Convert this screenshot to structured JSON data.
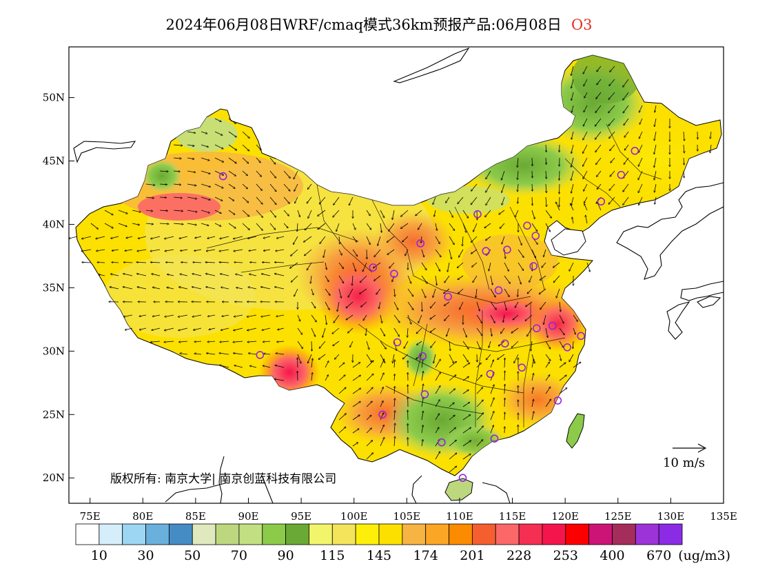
{
  "title": {
    "text": "2024年06月08日WRF/cmaq模式36km预报产品:06月08日",
    "pollutant": "O3",
    "pollutant_color": "#e03020"
  },
  "map": {
    "lon_range": [
      73,
      135
    ],
    "lat_range": [
      18,
      54
    ],
    "lon_ticks": [
      {
        "value": 75,
        "label": "75E"
      },
      {
        "value": 80,
        "label": "80E"
      },
      {
        "value": 85,
        "label": "85E"
      },
      {
        "value": 90,
        "label": "90E"
      },
      {
        "value": 95,
        "label": "95E"
      },
      {
        "value": 100,
        "label": "100E"
      },
      {
        "value": 105,
        "label": "105E"
      },
      {
        "value": 110,
        "label": "110E"
      },
      {
        "value": 115,
        "label": "115E"
      },
      {
        "value": 120,
        "label": "120E"
      },
      {
        "value": 125,
        "label": "125E"
      },
      {
        "value": 130,
        "label": "130E"
      },
      {
        "value": 135,
        "label": "135E"
      }
    ],
    "lat_ticks": [
      {
        "value": 20,
        "label": "20N"
      },
      {
        "value": 25,
        "label": "25N"
      },
      {
        "value": 30,
        "label": "30N"
      },
      {
        "value": 35,
        "label": "35N"
      },
      {
        "value": 40,
        "label": "40N"
      },
      {
        "value": 45,
        "label": "45N"
      },
      {
        "value": 50,
        "label": "50N"
      }
    ],
    "wind_reference": {
      "label": "10 m/s"
    },
    "cities": [
      {
        "lon": 87.6,
        "lat": 43.8
      },
      {
        "lon": 91.1,
        "lat": 29.7
      },
      {
        "lon": 101.8,
        "lat": 36.6
      },
      {
        "lon": 103.8,
        "lat": 36.1
      },
      {
        "lon": 106.3,
        "lat": 38.5
      },
      {
        "lon": 111.7,
        "lat": 40.8
      },
      {
        "lon": 116.4,
        "lat": 39.9
      },
      {
        "lon": 117.2,
        "lat": 39.1
      },
      {
        "lon": 114.5,
        "lat": 38.0
      },
      {
        "lon": 112.5,
        "lat": 37.9
      },
      {
        "lon": 117.0,
        "lat": 36.7
      },
      {
        "lon": 113.7,
        "lat": 34.8
      },
      {
        "lon": 108.9,
        "lat": 34.3
      },
      {
        "lon": 118.8,
        "lat": 32.0
      },
      {
        "lon": 117.3,
        "lat": 31.8
      },
      {
        "lon": 121.5,
        "lat": 31.2
      },
      {
        "lon": 120.2,
        "lat": 30.3
      },
      {
        "lon": 114.3,
        "lat": 30.6
      },
      {
        "lon": 104.1,
        "lat": 30.7
      },
      {
        "lon": 106.5,
        "lat": 29.6
      },
      {
        "lon": 112.9,
        "lat": 28.2
      },
      {
        "lon": 115.9,
        "lat": 28.7
      },
      {
        "lon": 106.7,
        "lat": 26.6
      },
      {
        "lon": 119.3,
        "lat": 26.1
      },
      {
        "lon": 102.7,
        "lat": 25.0
      },
      {
        "lon": 113.3,
        "lat": 23.1
      },
      {
        "lon": 108.3,
        "lat": 22.8
      },
      {
        "lon": 110.3,
        "lat": 20.0
      },
      {
        "lon": 123.4,
        "lat": 41.8
      },
      {
        "lon": 125.3,
        "lat": 43.9
      },
      {
        "lon": 126.6,
        "lat": 45.8
      }
    ]
  },
  "colorbar": {
    "colors": [
      "#ffffff",
      "#d5eefa",
      "#9dd6f3",
      "#69b0dc",
      "#468cc4",
      "#dfe9bd",
      "#bdd77f",
      "#c2df82",
      "#8ccb4a",
      "#6aa935",
      "#f2f56a",
      "#f3e45b",
      "#fdef0a",
      "#fce000",
      "#f7b443",
      "#fba625",
      "#fb8b00",
      "#f55f2f",
      "#fc6767",
      "#f52f52",
      "#f5154d",
      "#fc0000",
      "#cc1477",
      "#a52d5c",
      "#9c33d8",
      "#8b2be6"
    ],
    "labels": [
      "10",
      "30",
      "50",
      "70",
      "90",
      "115",
      "145",
      "174",
      "201",
      "228",
      "253",
      "400",
      "670"
    ],
    "unit": "(ug/m3)"
  },
  "copyright": "版权所有: 南京大学| 南京创蓝科技有限公司"
}
